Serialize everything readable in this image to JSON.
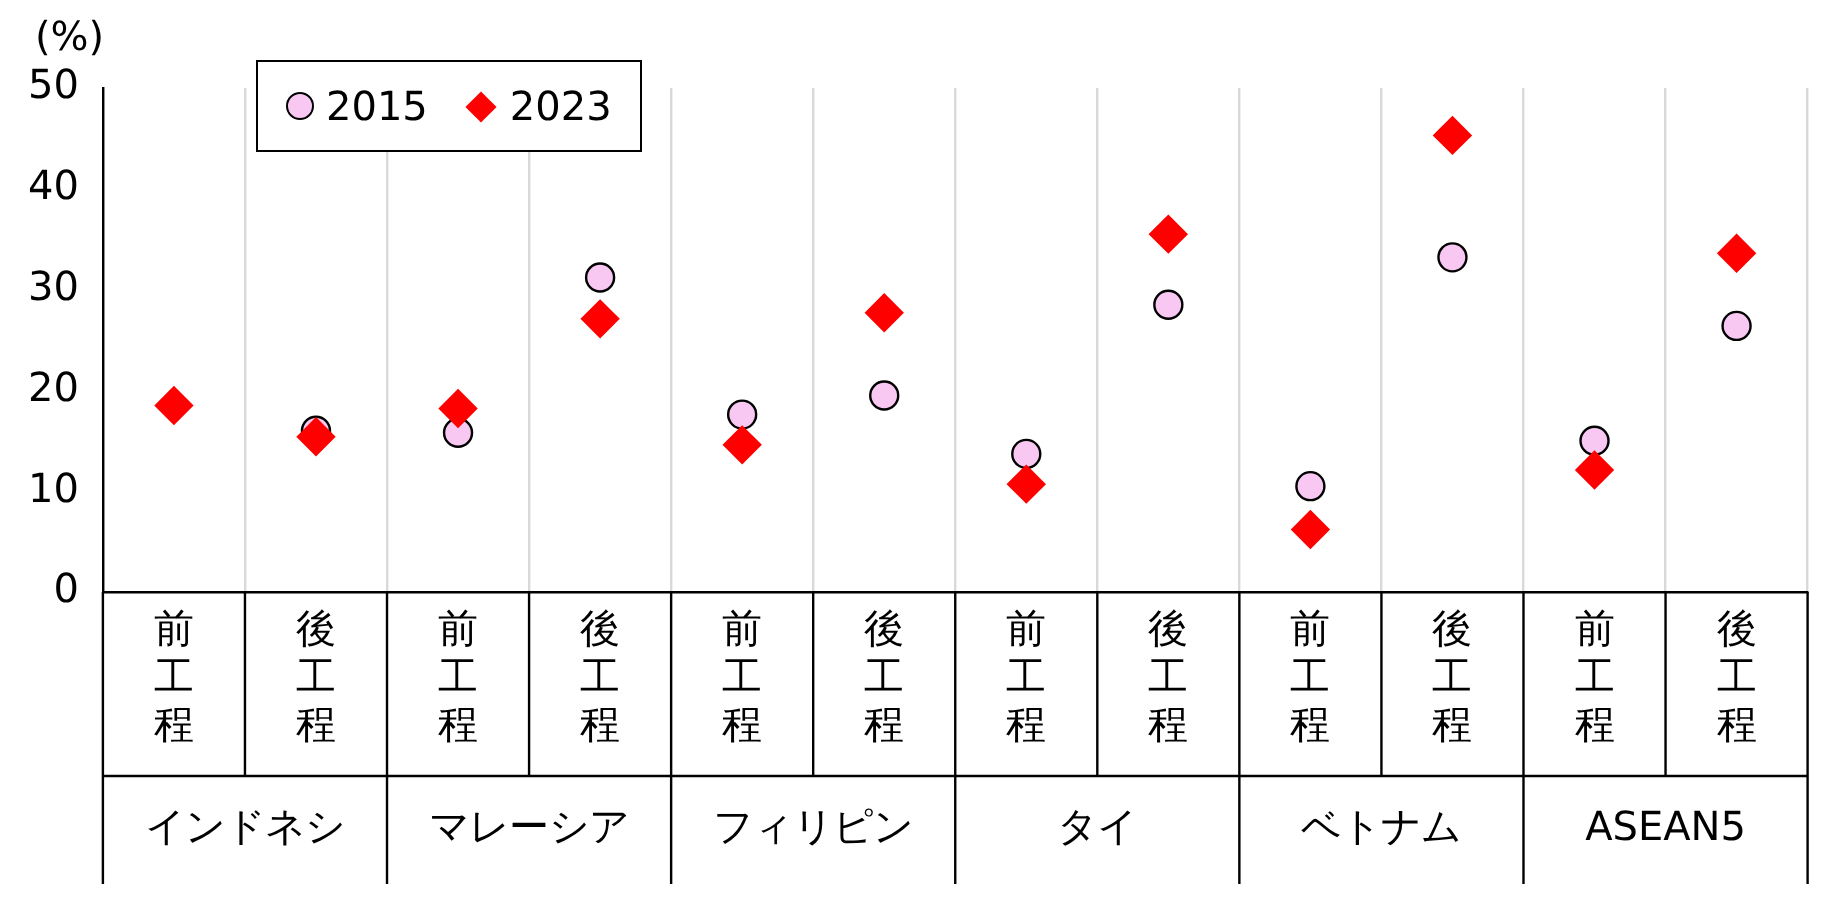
{
  "chart_data": {
    "type": "scatter",
    "ylabel": "(%)",
    "categories": [
      "前工程",
      "後工程",
      "前工程",
      "後工程",
      "前工程",
      "後工程",
      "前工程",
      "後工程",
      "前工程",
      "後工程",
      "前工程",
      "後工程"
    ],
    "series": [
      {
        "name": "2015",
        "color": "#f8c8f2",
        "marker": "circle",
        "values": [
          null,
          16.0,
          15.8,
          31.2,
          17.6,
          19.5,
          13.7,
          28.5,
          10.5,
          33.2,
          15.0,
          26.4
        ]
      },
      {
        "name": "2023",
        "color": "#ff0000",
        "marker": "diamond",
        "values": [
          18.5,
          15.4,
          18.2,
          27.1,
          14.6,
          27.7,
          10.7,
          35.5,
          6.2,
          45.3,
          12.1,
          33.6
        ]
      }
    ],
    "annotations": [
      "インドネシ",
      "マレーシア",
      "フィリピン",
      "タイ",
      "ベトナム",
      "ASEAN5"
    ],
    "ylim": [
      0,
      50
    ],
    "yticks": [
      0,
      10,
      20,
      30,
      40,
      50
    ],
    "grid": "x",
    "legend": "top left"
  }
}
